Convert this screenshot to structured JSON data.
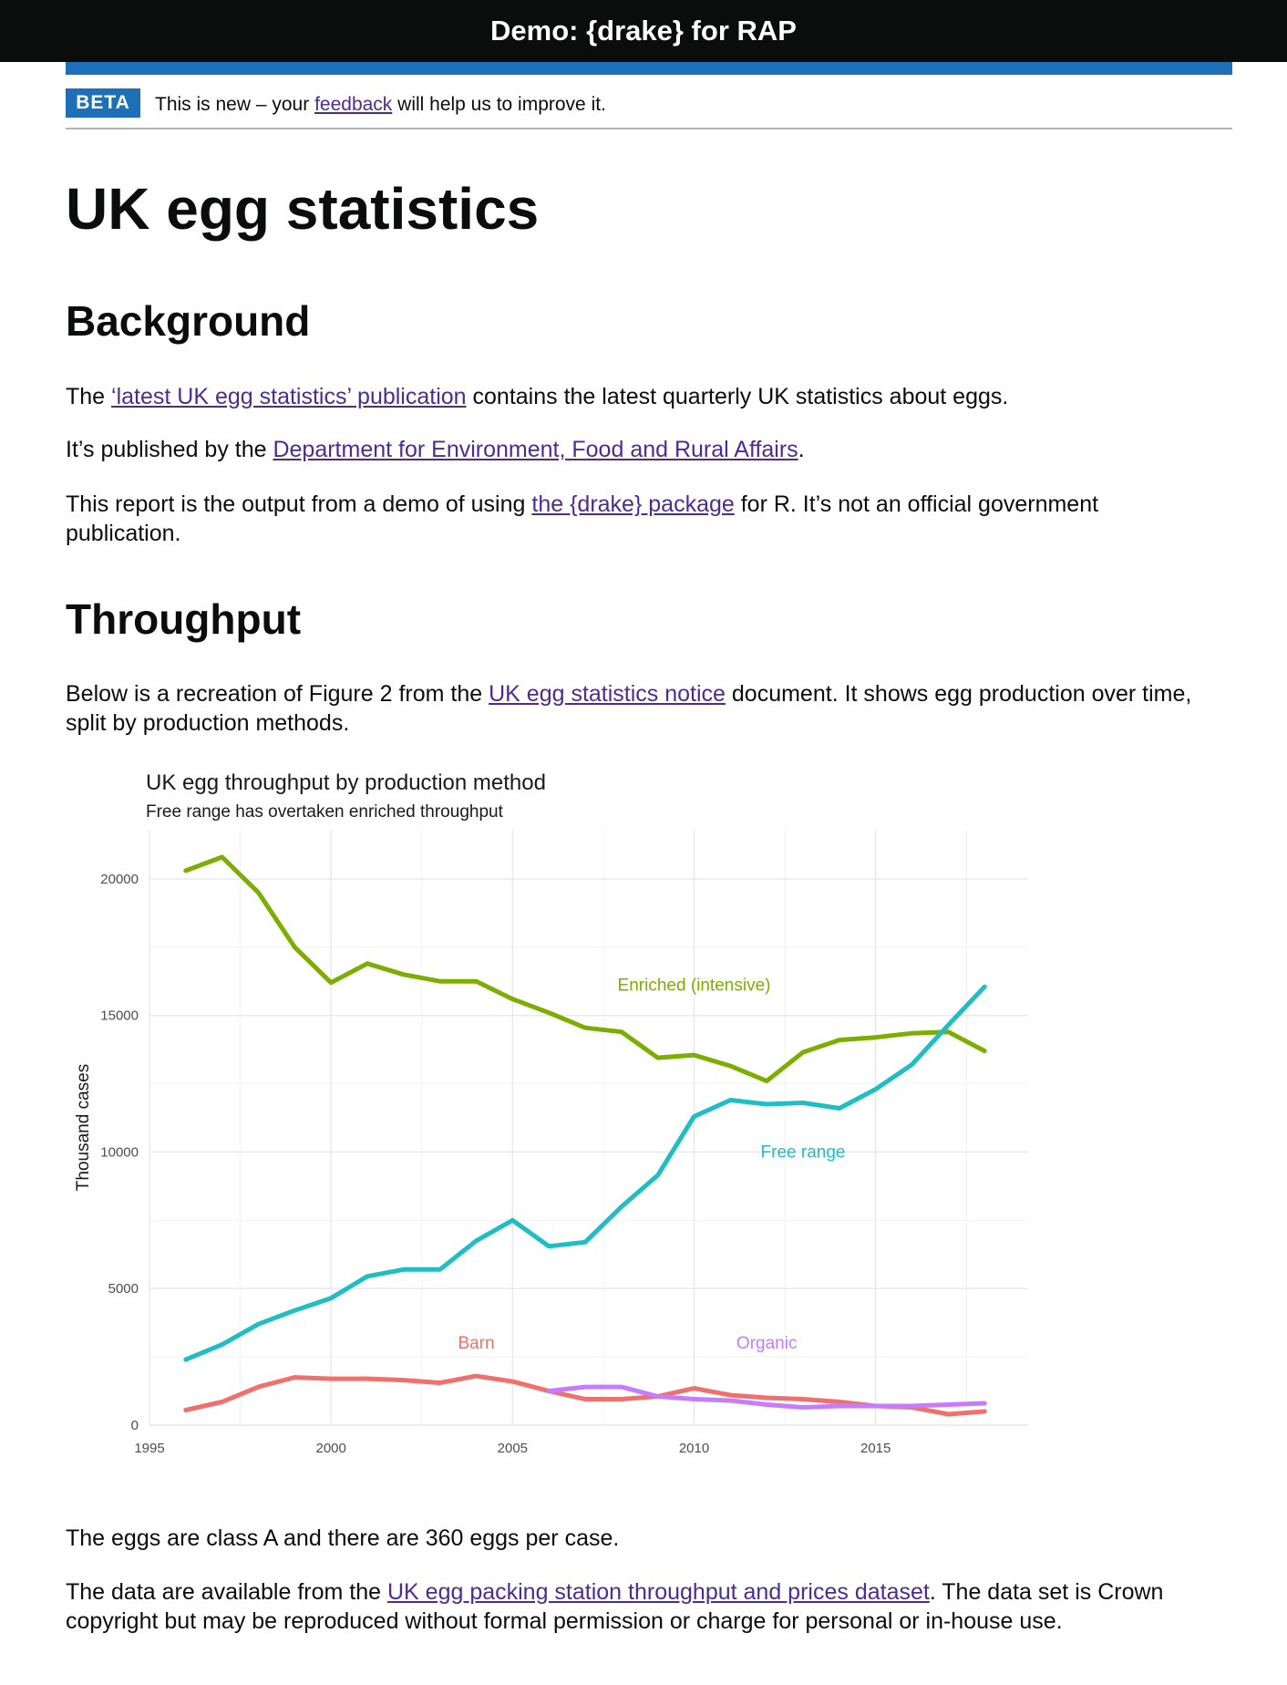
{
  "header": {
    "title": "Demo: {drake} for RAP"
  },
  "phase_banner": {
    "tag": "BETA",
    "text_before": "This is new – your ",
    "link": "feedback",
    "text_after": " will help us to improve it."
  },
  "page_title": "UK egg statistics",
  "background": {
    "heading": "Background",
    "p1_link": "‘latest UK egg statistics’ publication",
    "p1_after": " contains the latest quarterly UK statistics about eggs.",
    "p1_before": "The ",
    "p2_before": "It’s published by the ",
    "p2_link": "Department for Environment, Food and Rural Affairs",
    "p2_after": ".",
    "p3_before": "This report is the output from a demo of using ",
    "p3_link": "the {drake} package",
    "p3_after": " for R. It’s not an official government publication."
  },
  "throughput": {
    "heading": "Throughput",
    "p1_before": "Below is a recreation of Figure 2 from the ",
    "p1_link": "UK egg statistics notice",
    "p1_after": " document. It shows egg production over time, split by production methods.",
    "p2": "The eggs are class A and there are 360 eggs per case.",
    "p3_before": "The data are available from the ",
    "p3_link": "UK egg packing station throughput and prices dataset",
    "p3_after": ". The data set is Crown copyright but may be reproduced without formal permission or charge for personal or in-house use."
  },
  "chart_data": {
    "type": "line",
    "title": "UK egg throughput by production method",
    "subtitle": "Free range has overtaken enriched throughput",
    "xlabel": "",
    "ylabel": "Thousand cases",
    "xlim": [
      1995,
      2019.2
    ],
    "ylim": [
      0,
      21800
    ],
    "x_ticks": [
      1995,
      2000,
      2005,
      2010,
      2015
    ],
    "y_ticks": [
      0,
      5000,
      10000,
      15000,
      20000
    ],
    "grid": true,
    "legend": "direct labels",
    "series": [
      {
        "name": "Enriched (intensive)",
        "color": "#7cae00",
        "label_at": [
          2010,
          16100
        ],
        "points": [
          [
            1996,
            20300
          ],
          [
            1997,
            20800
          ],
          [
            1998,
            19500
          ],
          [
            1999,
            17500
          ],
          [
            2000,
            16200
          ],
          [
            2001,
            16900
          ],
          [
            2002,
            16500
          ],
          [
            2003,
            16250
          ],
          [
            2004,
            16250
          ],
          [
            2005,
            15600
          ],
          [
            2006,
            15100
          ],
          [
            2007,
            14550
          ],
          [
            2008,
            14400
          ],
          [
            2009,
            13450
          ],
          [
            2010,
            13550
          ],
          [
            2011,
            13150
          ],
          [
            2012,
            12600
          ],
          [
            2013,
            13650
          ],
          [
            2014,
            14100
          ],
          [
            2015,
            14200
          ],
          [
            2016,
            14350
          ],
          [
            2017,
            14400
          ],
          [
            2018,
            13700
          ]
        ]
      },
      {
        "name": "Free range",
        "color": "#1ebec4",
        "label_at": [
          2013,
          10000
        ],
        "points": [
          [
            1996,
            2400
          ],
          [
            1997,
            2950
          ],
          [
            1998,
            3700
          ],
          [
            1999,
            4200
          ],
          [
            2000,
            4650
          ],
          [
            2001,
            5450
          ],
          [
            2002,
            5700
          ],
          [
            2003,
            5700
          ],
          [
            2004,
            6750
          ],
          [
            2005,
            7500
          ],
          [
            2006,
            6550
          ],
          [
            2007,
            6700
          ],
          [
            2008,
            8000
          ],
          [
            2009,
            9150
          ],
          [
            2010,
            11300
          ],
          [
            2011,
            11900
          ],
          [
            2012,
            11750
          ],
          [
            2013,
            11800
          ],
          [
            2014,
            11600
          ],
          [
            2015,
            12300
          ],
          [
            2016,
            13200
          ],
          [
            2017,
            14650
          ],
          [
            2018,
            16050
          ]
        ]
      },
      {
        "name": "Barn",
        "color": "#f2706b",
        "label_at": [
          2004,
          3000
        ],
        "points": [
          [
            1996,
            550
          ],
          [
            1997,
            850
          ],
          [
            1998,
            1400
          ],
          [
            1999,
            1750
          ],
          [
            2000,
            1700
          ],
          [
            2001,
            1700
          ],
          [
            2002,
            1650
          ],
          [
            2003,
            1550
          ],
          [
            2004,
            1800
          ],
          [
            2005,
            1600
          ],
          [
            2006,
            1250
          ],
          [
            2007,
            950
          ],
          [
            2008,
            950
          ],
          [
            2009,
            1050
          ],
          [
            2010,
            1350
          ],
          [
            2011,
            1100
          ],
          [
            2012,
            1000
          ],
          [
            2013,
            950
          ],
          [
            2014,
            850
          ],
          [
            2015,
            700
          ],
          [
            2016,
            650
          ],
          [
            2017,
            400
          ],
          [
            2018,
            500
          ]
        ]
      },
      {
        "name": "Organic",
        "color": "#c77cff",
        "label_at": [
          2012,
          3000
        ],
        "points": [
          [
            2006,
            1250
          ],
          [
            2007,
            1400
          ],
          [
            2008,
            1400
          ],
          [
            2009,
            1050
          ],
          [
            2010,
            950
          ],
          [
            2011,
            900
          ],
          [
            2012,
            750
          ],
          [
            2013,
            650
          ],
          [
            2014,
            700
          ],
          [
            2015,
            700
          ],
          [
            2016,
            700
          ],
          [
            2017,
            750
          ],
          [
            2018,
            800
          ]
        ]
      }
    ]
  }
}
